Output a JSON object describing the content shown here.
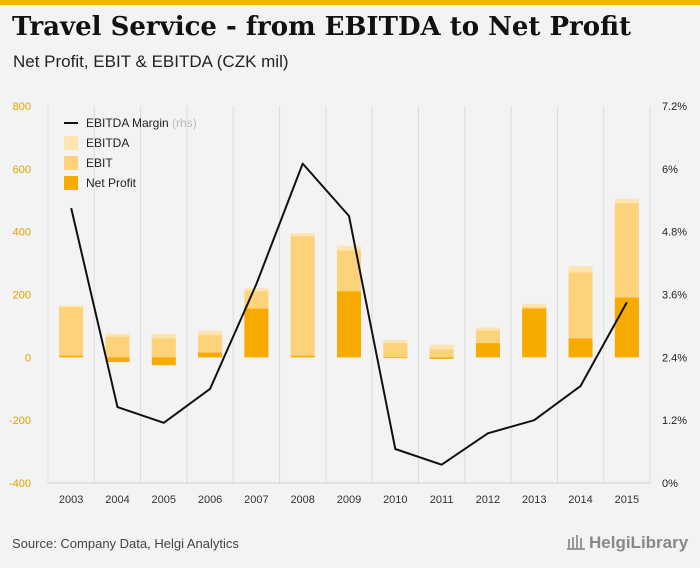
{
  "title": "Travel Service - from EBITDA to Net Profit",
  "subtitle": "Net Profit, EBIT & EBITDA (CZK mil)",
  "source": "Source: Company Data, Helgi Analytics",
  "logo_text": "HelgiLibrary",
  "colors": {
    "background": "#f3f3f3",
    "accent": "#f7b500",
    "ebitda": "#fde4b0",
    "ebit": "#fcd27a",
    "net_profit": "#f7ab00",
    "margin_line": "#111111"
  },
  "chart_data": {
    "type": "bar",
    "categories": [
      "2003",
      "2004",
      "2005",
      "2006",
      "2007",
      "2008",
      "2009",
      "2010",
      "2011",
      "2012",
      "2013",
      "2014",
      "2015"
    ],
    "series": [
      {
        "name": "EBITDA",
        "type": "bar",
        "axis": "left",
        "values": [
          165,
          75,
          75,
          85,
          220,
          395,
          355,
          55,
          40,
          95,
          170,
          290,
          505
        ]
      },
      {
        "name": "EBIT",
        "type": "bar",
        "axis": "left",
        "values": [
          160,
          65,
          60,
          70,
          210,
          385,
          340,
          45,
          25,
          85,
          160,
          270,
          490
        ]
      },
      {
        "name": "Net Profit",
        "type": "bar",
        "axis": "left",
        "values": [
          5,
          -15,
          -25,
          15,
          155,
          5,
          210,
          0,
          -5,
          45,
          155,
          60,
          190
        ]
      },
      {
        "name": "EBITDA Margin",
        "type": "line",
        "axis": "right",
        "unit_note": "(rhs)",
        "values": [
          5.25,
          1.45,
          1.15,
          1.8,
          3.8,
          6.1,
          5.1,
          0.65,
          0.35,
          0.95,
          1.2,
          1.85,
          3.45
        ]
      }
    ],
    "left_axis": {
      "ylim": [
        -400,
        800
      ],
      "ticks": [
        -400,
        -200,
        0,
        200,
        400,
        600,
        800
      ],
      "tick_labels": [
        "-400",
        "-200",
        "0",
        "200",
        "400",
        "600",
        "800"
      ]
    },
    "right_axis": {
      "ylim": [
        0,
        7.2
      ],
      "ticks": [
        0,
        1.2,
        2.4,
        3.6,
        4.8,
        6,
        7.2
      ],
      "tick_labels": [
        "0%",
        "1.2%",
        "2.4%",
        "3.6%",
        "4.8%",
        "6%",
        "7.2%"
      ]
    },
    "legend": {
      "placement": "top-left",
      "entries": [
        "EBITDA Margin",
        "EBITDA",
        "EBIT",
        "Net Profit"
      ],
      "rhs_note": "(rhs)"
    },
    "grid": {
      "vertical": true,
      "horizontal": false
    }
  }
}
